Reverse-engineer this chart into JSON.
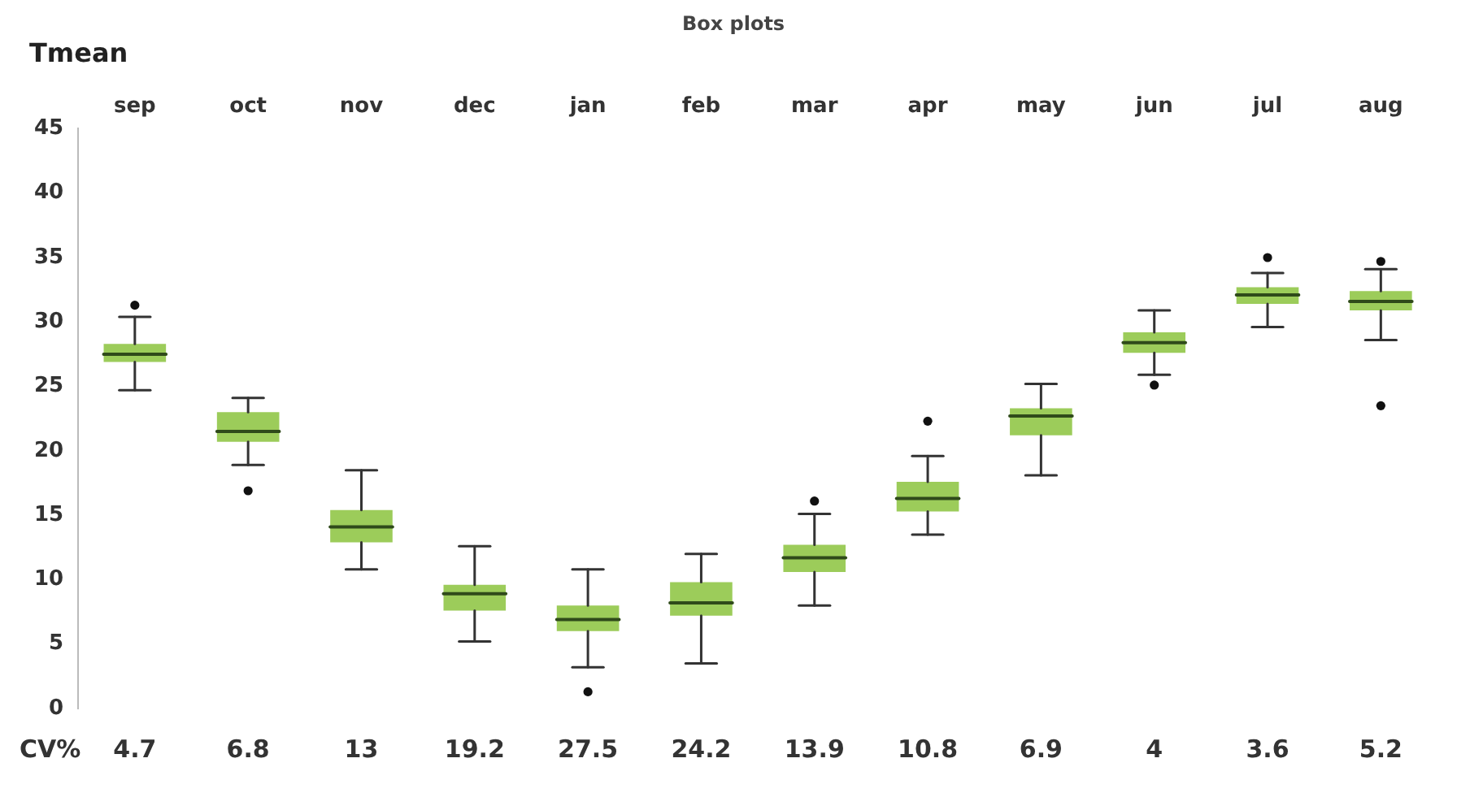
{
  "chart_data": {
    "type": "box",
    "title": "Box plots",
    "ylabel": "Tmean",
    "categories": [
      "sep",
      "oct",
      "nov",
      "dec",
      "jan",
      "feb",
      "mar",
      "apr",
      "may",
      "jun",
      "jul",
      "aug"
    ],
    "color": "#9ccc5a",
    "boxes": [
      {
        "low": 24.7,
        "q1": 26.9,
        "median": 27.5,
        "q3": 28.3,
        "high": 30.4,
        "outliers": [
          31.3
        ]
      },
      {
        "low": 18.9,
        "q1": 20.7,
        "median": 21.5,
        "q3": 23.0,
        "high": 24.1,
        "outliers": [
          16.9
        ]
      },
      {
        "low": 10.8,
        "q1": 12.9,
        "median": 14.1,
        "q3": 15.4,
        "high": 18.5
      },
      {
        "low": 5.2,
        "q1": 7.6,
        "median": 8.9,
        "q3": 9.6,
        "high": 12.6
      },
      {
        "low": 3.2,
        "q1": 6.0,
        "median": 6.9,
        "q3": 8.0,
        "high": 10.8,
        "outliers": [
          1.3
        ]
      },
      {
        "low": 3.5,
        "q1": 7.2,
        "median": 8.2,
        "q3": 9.8,
        "high": 12.0
      },
      {
        "low": 8.0,
        "q1": 10.6,
        "median": 11.7,
        "q3": 12.7,
        "high": 15.1,
        "outliers": [
          16.1
        ]
      },
      {
        "low": 13.5,
        "q1": 15.3,
        "median": 16.3,
        "q3": 17.6,
        "high": 19.6,
        "outliers": [
          22.3
        ]
      },
      {
        "low": 18.1,
        "q1": 21.2,
        "median": 22.7,
        "q3": 23.3,
        "high": 25.2
      },
      {
        "low": 25.9,
        "q1": 27.6,
        "median": 28.4,
        "q3": 29.2,
        "high": 30.9,
        "outliers": [
          25.1
        ]
      },
      {
        "low": 29.6,
        "q1": 31.4,
        "median": 32.1,
        "q3": 32.7,
        "high": 33.8,
        "outliers": [
          35.0
        ]
      },
      {
        "low": 28.6,
        "q1": 30.9,
        "median": 31.6,
        "q3": 32.4,
        "high": 34.1,
        "outliers": [
          34.7,
          23.5
        ]
      }
    ],
    "ylim": [
      0,
      45
    ],
    "yticks": [
      0,
      5,
      10,
      15,
      20,
      25,
      30,
      35,
      40,
      45
    ],
    "grid": false,
    "legend": false,
    "annotations": [
      "CV%",
      "4.7",
      "6.8",
      "13",
      "19.2",
      "27.5",
      "24.2",
      "13.9",
      "10.8",
      "6.9",
      "4",
      "3.6",
      "5.2"
    ]
  }
}
